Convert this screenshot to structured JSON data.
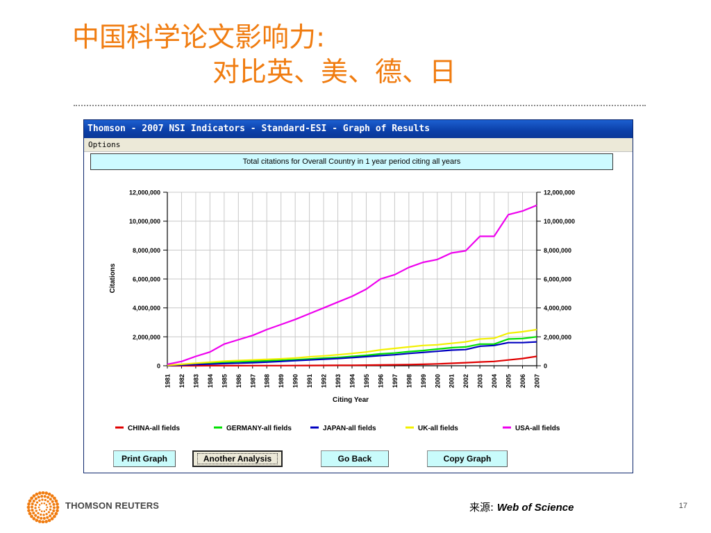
{
  "slide": {
    "title_line1": "中国科学论文影响力:",
    "title_line2": "对比英、美、德、日",
    "source_label": "来源",
    "source_sep": ":",
    "source_value": "Web of Science",
    "brand": "THOMSON REUTERS",
    "page_number": "17",
    "title_color": "#f07c10"
  },
  "window": {
    "title": "Thomson - 2007 NSI Indicators - Standard-ESI - Graph of Results",
    "menu": {
      "options": "Options"
    }
  },
  "buttons": {
    "print": "Print Graph",
    "another": "Another Analysis",
    "goback": "Go Back",
    "copy": "Copy Graph"
  },
  "chart_data": {
    "type": "line",
    "title": "Total citations for Overall Country in 1 year period citing all years",
    "xlabel": "Citing Year",
    "ylabel": "Citations",
    "ylim": [
      0,
      12000000
    ],
    "yticks": [
      0,
      2000000,
      4000000,
      6000000,
      8000000,
      10000000,
      12000000
    ],
    "ytick_labels": [
      "0",
      "2,000,000",
      "4,000,000",
      "6,000,000",
      "8,000,000",
      "10,000,000",
      "12,000,000"
    ],
    "grid": true,
    "dual_y_axis": true,
    "legend_position": "bottom",
    "categories": [
      "1981",
      "1982",
      "1983",
      "1984",
      "1985",
      "1986",
      "1987",
      "1988",
      "1989",
      "1990",
      "1991",
      "1992",
      "1993",
      "1994",
      "1995",
      "1996",
      "1997",
      "1998",
      "1999",
      "2000",
      "2001",
      "2002",
      "2003",
      "2004",
      "2005",
      "2006",
      "2007"
    ],
    "series": [
      {
        "name": "CHINA-all fields",
        "color": "#e00000",
        "values": [
          0,
          1000,
          2000,
          3000,
          5000,
          6000,
          8000,
          10000,
          12000,
          15000,
          18000,
          22000,
          28000,
          35000,
          45000,
          55000,
          65000,
          80000,
          100000,
          130000,
          170000,
          210000,
          260000,
          300000,
          400000,
          500000,
          650000
        ]
      },
      {
        "name": "GERMANY-all fields",
        "color": "#00e000",
        "values": [
          20000,
          80000,
          150000,
          200000,
          250000,
          280000,
          310000,
          340000,
          380000,
          420000,
          470000,
          530000,
          570000,
          650000,
          720000,
          820000,
          880000,
          980000,
          1050000,
          1150000,
          1250000,
          1300000,
          1500000,
          1500000,
          1850000,
          1880000,
          2000000
        ]
      },
      {
        "name": "JAPAN-all fields",
        "color": "#0000c0",
        "values": [
          10000,
          40000,
          80000,
          110000,
          150000,
          180000,
          210000,
          250000,
          300000,
          350000,
          400000,
          450000,
          500000,
          560000,
          630000,
          700000,
          760000,
          850000,
          920000,
          1000000,
          1080000,
          1120000,
          1350000,
          1400000,
          1600000,
          1600000,
          1650000
        ]
      },
      {
        "name": "UK-all fields",
        "color": "#f2f000",
        "values": [
          30000,
          100000,
          180000,
          250000,
          320000,
          360000,
          400000,
          440000,
          480000,
          540000,
          620000,
          680000,
          760000,
          850000,
          950000,
          1100000,
          1200000,
          1300000,
          1400000,
          1450000,
          1550000,
          1650000,
          1850000,
          1900000,
          2250000,
          2350000,
          2500000
        ]
      },
      {
        "name": "USA-all fields",
        "color": "#ee00ee",
        "values": [
          100000,
          300000,
          650000,
          950000,
          1500000,
          1800000,
          2100000,
          2500000,
          2850000,
          3200000,
          3600000,
          4000000,
          4400000,
          4800000,
          5300000,
          6000000,
          6300000,
          6800000,
          7150000,
          7350000,
          7800000,
          7950000,
          8950000,
          8950000,
          10450000,
          10700000,
          11100000
        ]
      }
    ]
  }
}
